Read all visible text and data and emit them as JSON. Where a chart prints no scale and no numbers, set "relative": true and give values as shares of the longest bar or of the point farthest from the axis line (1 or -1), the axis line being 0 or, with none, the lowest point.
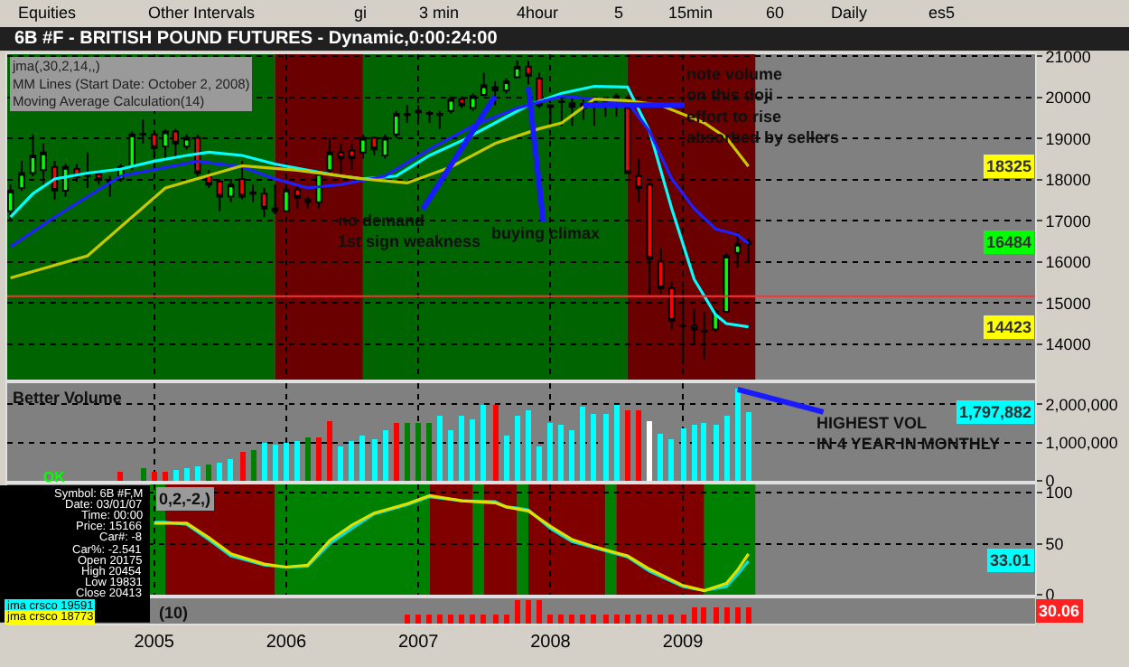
{
  "chart_data": [
    {
      "type": "candlestick",
      "title": "6B #F - BRITISH POUND FUTURES - Dynamic,0:00:24:00",
      "subtitle": "jma(,30,2,14,,)\nMM Lines (Start Date: October 2, 2008)\nMoving Average Calculation(14)",
      "x": [
        "2003-12",
        "2004-01",
        "2004-02",
        "2004-03",
        "2004-04",
        "2004-05",
        "2004-06",
        "2004-07",
        "2004-08",
        "2004-09",
        "2004-10",
        "2004-11",
        "2004-12",
        "2005-01",
        "2005-02",
        "2005-03",
        "2005-04",
        "2005-05",
        "2005-06",
        "2005-07",
        "2005-08",
        "2005-09",
        "2005-10",
        "2005-11",
        "2005-12",
        "2006-01",
        "2006-02",
        "2006-03",
        "2006-04",
        "2006-05",
        "2006-06",
        "2006-07",
        "2006-08",
        "2006-09",
        "2006-10",
        "2006-11",
        "2006-12",
        "2007-01",
        "2007-02",
        "2007-03",
        "2007-04",
        "2007-05",
        "2007-06",
        "2007-07",
        "2007-08",
        "2007-09",
        "2007-10",
        "2007-11",
        "2007-12",
        "2008-01",
        "2008-02",
        "2008-03",
        "2008-04",
        "2008-05",
        "2008-06",
        "2008-07",
        "2008-08",
        "2008-09",
        "2008-10",
        "2008-11",
        "2008-12",
        "2009-01",
        "2009-02",
        "2009-03",
        "2009-04",
        "2009-05",
        "2009-06",
        "2009-07"
      ],
      "ohlc": [
        [
          17230,
          17880,
          17010,
          17730
        ],
        [
          17800,
          18450,
          17730,
          18160
        ],
        [
          18160,
          19100,
          18090,
          18590
        ],
        [
          18230,
          18880,
          17800,
          18660
        ],
        [
          18310,
          18450,
          17520,
          17730
        ],
        [
          17730,
          18380,
          17590,
          18310
        ],
        [
          18260,
          18380,
          17950,
          18060
        ],
        [
          18090,
          18660,
          17800,
          18120
        ],
        [
          18130,
          18230,
          17880,
          17990
        ],
        [
          17950,
          18090,
          17590,
          17980
        ],
        [
          18020,
          18380,
          17950,
          18310
        ],
        [
          18310,
          19170,
          18230,
          19100
        ],
        [
          19100,
          19460,
          18880,
          19110
        ],
        [
          19100,
          19200,
          18520,
          18770
        ],
        [
          18810,
          19240,
          18450,
          19170
        ],
        [
          19170,
          19240,
          18520,
          18880
        ],
        [
          18810,
          19100,
          18740,
          19020
        ],
        [
          19020,
          19100,
          18090,
          18160
        ],
        [
          18090,
          18230,
          17800,
          17880
        ],
        [
          17950,
          18020,
          17230,
          17590
        ],
        [
          17590,
          18020,
          17450,
          17880
        ],
        [
          18020,
          18450,
          17520,
          17590
        ],
        [
          17660,
          17880,
          17450,
          17690
        ],
        [
          17660,
          17800,
          17090,
          17300
        ],
        [
          17300,
          17880,
          17160,
          17230
        ],
        [
          17230,
          17880,
          17230,
          17760
        ],
        [
          17760,
          17880,
          17300,
          17560
        ],
        [
          17520,
          17590,
          17300,
          17450
        ],
        [
          17450,
          18230,
          17300,
          18160
        ],
        [
          18230,
          19020,
          18160,
          18660
        ],
        [
          18660,
          18880,
          18160,
          18520
        ],
        [
          18710,
          18880,
          18230,
          18520
        ],
        [
          18660,
          19100,
          18520,
          19020
        ],
        [
          19020,
          19050,
          18590,
          18740
        ],
        [
          18590,
          19100,
          18520,
          19020
        ],
        [
          19100,
          19670,
          19020,
          19600
        ],
        [
          19600,
          19810,
          19380,
          19570
        ],
        [
          19670,
          19810,
          19460,
          19640
        ],
        [
          19600,
          19670,
          19380,
          19620
        ],
        [
          19600,
          19670,
          19240,
          19570
        ],
        [
          19670,
          20030,
          19600,
          19960
        ],
        [
          19960,
          20030,
          19740,
          19810
        ],
        [
          19740,
          20100,
          19670,
          20030
        ],
        [
          20060,
          20600,
          20030,
          20290
        ],
        [
          20250,
          20390,
          19810,
          20170
        ],
        [
          20170,
          20460,
          20100,
          20390
        ],
        [
          20490,
          20890,
          20460,
          20750
        ],
        [
          20750,
          20890,
          20320,
          20530
        ],
        [
          20460,
          20600,
          19740,
          19810
        ],
        [
          19810,
          19810,
          19310,
          19770
        ],
        [
          19890,
          20030,
          19310,
          19900
        ],
        [
          19860,
          20030,
          19310,
          19770
        ],
        [
          19740,
          19960,
          19460,
          19840
        ],
        [
          19890,
          19890,
          19310,
          19860
        ],
        [
          19960,
          19960,
          19530,
          19900
        ],
        [
          20030,
          20100,
          19530,
          19960
        ],
        [
          19740,
          20030,
          18160,
          18160
        ],
        [
          18090,
          18520,
          17450,
          17800
        ],
        [
          17880,
          17950,
          15220,
          16080
        ],
        [
          16010,
          16330,
          15220,
          15360
        ],
        [
          15360,
          15510,
          14360,
          14570
        ],
        [
          14460,
          15360,
          13500,
          14440
        ],
        [
          14460,
          14860,
          14000,
          14360
        ],
        [
          14310,
          14790,
          13640,
          14320
        ],
        [
          14360,
          14860,
          14290,
          14790
        ],
        [
          14790,
          16220,
          14790,
          16150
        ],
        [
          16220,
          16730,
          15870,
          16440
        ],
        [
          16440,
          16580,
          16010,
          16484
        ]
      ],
      "series": [
        {
          "type": "line",
          "color": "#00ffff",
          "x": [
            "2003-12",
            "2004-02",
            "2004-04",
            "2004-07",
            "2004-10",
            "2005-01",
            "2005-04",
            "2005-06",
            "2005-09",
            "2005-12",
            "2006-03",
            "2006-06",
            "2006-08",
            "2006-11",
            "2007-02",
            "2007-05",
            "2007-08",
            "2007-11",
            "2008-02",
            "2008-05",
            "2008-08",
            "2008-10",
            "2008-12",
            "2009-02",
            "2009-04",
            "2009-05",
            "2009-07"
          ],
          "values": [
            17090,
            17660,
            18020,
            18160,
            18260,
            18450,
            18590,
            18670,
            18590,
            18380,
            18230,
            18090,
            18020,
            18090,
            18590,
            18950,
            19380,
            19810,
            20100,
            20270,
            20250,
            19170,
            17300,
            15580,
            14720,
            14500,
            14423
          ]
        },
        {
          "type": "line",
          "color": "#2020ff",
          "x": [
            "2003-12",
            "2004-04",
            "2004-10",
            "2005-05",
            "2005-09",
            "2005-12",
            "2006-03",
            "2006-06",
            "2006-10",
            "2007-02",
            "2007-06",
            "2007-10",
            "2008-02",
            "2008-08",
            "2008-10",
            "2008-12",
            "2009-02",
            "2009-04",
            "2009-06",
            "2009-07"
          ],
          "values": [
            16370,
            17090,
            18090,
            18450,
            18310,
            18020,
            17800,
            17880,
            18090,
            18740,
            19310,
            19740,
            20030,
            19890,
            19170,
            18020,
            17300,
            16800,
            16660,
            16440
          ]
        },
        {
          "type": "line",
          "color": "#c8c800",
          "x": [
            "2003-12",
            "2004-07",
            "2005-02",
            "2005-09",
            "2006-02",
            "2006-08",
            "2006-12",
            "2007-04",
            "2007-08",
            "2007-12",
            "2008-02",
            "2008-05",
            "2008-08",
            "2008-11",
            "2009-03",
            "2009-05",
            "2009-07"
          ],
          "values": [
            15610,
            16150,
            17800,
            18340,
            18230,
            18020,
            17920,
            18310,
            18880,
            19240,
            19380,
            19960,
            19920,
            19810,
            19380,
            19020,
            18325
          ]
        }
      ],
      "xlim": [
        "2003-11-22",
        "2011-09-01"
      ],
      "xticks": [
        "2005",
        "2006",
        "2007",
        "2008",
        "2009"
      ],
      "ylim": [
        13140,
        21050
      ],
      "yticks": [
        14000,
        15000,
        16000,
        17000,
        18000,
        19000,
        20000,
        21000
      ],
      "tick_labels": "y",
      "grid": true,
      "bands": [
        {
          "axis": "x",
          "from": "2003-11-22",
          "to": "2005-12",
          "color": "#006400"
        },
        {
          "axis": "x",
          "from": "2005-12",
          "to": "2006-08",
          "color": "#6b0000"
        },
        {
          "axis": "x",
          "from": "2006-08",
          "to": "2008-08",
          "color": "#006400"
        },
        {
          "axis": "x",
          "from": "2008-08",
          "to": "2009-07-20",
          "color": "#6b0000"
        }
      ],
      "ref_lines": [
        {
          "axis": "y",
          "value": 15166,
          "color": "#ff3030"
        }
      ],
      "annotations": [
        {
          "text": "no demand\n1st sign weakness",
          "x": "2007-08",
          "y": 20030
        },
        {
          "text": "buying climax",
          "x": "2007-11",
          "y": 20250
        },
        {
          "text": "note volume\non this doji\neffort to rise\nabsorbed by sellers",
          "x": "2008-04",
          "y": 19815
        },
        {
          "text": "18325",
          "y": 18325
        },
        {
          "text": "16484",
          "y": 16484
        },
        {
          "text": "14423",
          "y": 14423
        },
        "Equities",
        "Other Intervals",
        "gi",
        "3 min",
        "4hour",
        "5",
        "15min",
        "60",
        "Daily",
        "es5"
      ]
    },
    {
      "type": "bar",
      "title": "Better Volume",
      "x": [
        "2004-10",
        "2004-11",
        "2004-12",
        "2005-01",
        "2005-02",
        "2005-03",
        "2005-04",
        "2005-05",
        "2005-06",
        "2005-07",
        "2005-08",
        "2005-09",
        "2005-10",
        "2005-11",
        "2005-12",
        "2006-01",
        "2006-02",
        "2006-03",
        "2006-04",
        "2006-05",
        "2006-06",
        "2006-07",
        "2006-08",
        "2006-09",
        "2006-10",
        "2006-11",
        "2006-12",
        "2007-01",
        "2007-02",
        "2007-03",
        "2007-04",
        "2007-05",
        "2007-06",
        "2007-07",
        "2007-08",
        "2007-09",
        "2007-10",
        "2007-11",
        "2007-12",
        "2008-01",
        "2008-02",
        "2008-03",
        "2008-04",
        "2008-05",
        "2008-06",
        "2008-07",
        "2008-08",
        "2008-09",
        "2008-10",
        "2008-11",
        "2008-12",
        "2009-01",
        "2009-02",
        "2009-03",
        "2009-04",
        "2009-05",
        "2009-06",
        "2009-07"
      ],
      "values": [
        230000,
        null,
        330000,
        250000,
        250000,
        290000,
        330000,
        390000,
        430000,
        490000,
        590000,
        740000,
        820000,
        980000,
        940000,
        980000,
        1020000,
        1120000,
        1140000,
        1570000,
        920000,
        1020000,
        1170000,
        1080000,
        1330000,
        1530000,
        1530000,
        1530000,
        1530000,
        1720000,
        1330000,
        1700000,
        1600000,
        1960000,
        2000000,
        1170000,
        1720000,
        1860000,
        880000,
        1490000,
        1450000,
        1310000,
        1920000,
        1760000,
        1760000,
        1960000,
        1860000,
        1860000,
        1570000,
        1210000,
        1080000,
        1370000,
        1450000,
        1530000,
        1450000,
        1700000,
        2390000,
        1797882
      ],
      "colors": [
        "#ff0000",
        "#00ffff",
        "#008000",
        "#ff0000",
        "#ff0000",
        "#00ffff",
        "#00ffff",
        "#00ffff",
        "#008000",
        "#00ffff",
        "#00ffff",
        "#ff0000",
        "#008000",
        "#00ffff",
        "#00ffff",
        "#00ffff",
        "#00ffff",
        "#008000",
        "#ff0000",
        "#ff0000",
        "#00ffff",
        "#00ffff",
        "#00ffff",
        "#00ffff",
        "#00ffff",
        "#ff0000",
        "#008000",
        "#008000",
        "#008000",
        "#00ffff",
        "#00ffff",
        "#00ffff",
        "#00ffff",
        "#00ffff",
        "#ff0000",
        "#00ffff",
        "#00ffff",
        "#00ffff",
        "#00ffff",
        "#00ffff",
        "#00ffff",
        "#00ffff",
        "#00ffff",
        "#00ffff",
        "#00ffff",
        "#00ffff",
        "#ff0000",
        "#ff0000",
        "#ffffff",
        "#00ffff",
        "#00ffff",
        "#00ffff",
        "#00ffff",
        "#00ffff",
        "#00ffff",
        "#00ffff",
        "#00ffff",
        "#00ffff"
      ],
      "xlim": [
        "2003-11-22",
        "2011-09-01"
      ],
      "xticks": [
        "2005",
        "2006",
        "2007",
        "2008",
        "2009"
      ],
      "ylim": [
        0,
        2550000
      ],
      "yticks": [
        0,
        {
          "value": 1000000,
          "label": "1,000,000"
        },
        {
          "value": 2000000,
          "label": "2,000,000"
        }
      ],
      "tick_labels": "y",
      "grid": true,
      "annotations": [
        {
          "text": "HIGHEST VOL\nIN 4 YEAR IN MONTHLY",
          "x": "2009-06",
          "y": 2390000
        },
        {
          "text": "1,797,882",
          "y": 1797882
        },
        "OK"
      ]
    },
    {
      "type": "line",
      "title": "0,2,-2,)",
      "series": [
        {
          "type": "line",
          "color": "#00e0e0",
          "x": [
            "2005-01",
            "2005-02",
            "2005-04",
            "2005-06",
            "2005-08",
            "2005-11",
            "2006-01",
            "2006-03",
            "2006-05",
            "2006-07",
            "2006-09",
            "2006-12",
            "2007-02",
            "2007-05",
            "2007-08",
            "2007-09",
            "2007-10",
            "2007-11",
            "2008-01",
            "2008-03",
            "2008-05",
            "2008-07",
            "2008-08",
            "2008-10",
            "2009-01",
            "2009-03",
            "2009-05",
            "2009-06",
            "2009-07"
          ],
          "values": [
            71,
            71,
            69,
            54,
            38,
            29,
            27,
            28,
            50,
            65,
            79,
            88,
            96,
            92,
            91,
            86,
            85,
            83,
            65,
            52,
            46,
            40,
            37,
            23,
            8,
            4,
            8,
            20,
            33.01
          ]
        },
        {
          "type": "line",
          "color": "#e0e000",
          "x": [
            "2005-01",
            "2005-02",
            "2005-04",
            "2005-06",
            "2005-08",
            "2005-11",
            "2006-01",
            "2006-03",
            "2006-05",
            "2006-07",
            "2006-09",
            "2006-12",
            "2007-02",
            "2007-05",
            "2007-08",
            "2007-09",
            "2007-10",
            "2007-11",
            "2008-01",
            "2008-03",
            "2008-05",
            "2008-07",
            "2008-08",
            "2008-10",
            "2009-01",
            "2009-03",
            "2009-05",
            "2009-06",
            "2009-07"
          ],
          "values": [
            70,
            70,
            70,
            56,
            40,
            30,
            27,
            29,
            53,
            68,
            80,
            89,
            97,
            92,
            90,
            86,
            84,
            82,
            67,
            54,
            47,
            41,
            38,
            25,
            9,
            4,
            11,
            24,
            40
          ]
        }
      ],
      "xlim": [
        "2003-11-22",
        "2011-09-01"
      ],
      "xticks": [
        "2005",
        "2006",
        "2007",
        "2008",
        "2009"
      ],
      "ylim": [
        0,
        108
      ],
      "yticks": [
        0,
        50,
        100
      ],
      "tick_labels": "y",
      "grid": true,
      "bands": [
        {
          "axis": "x",
          "from": "2004-12-20",
          "to": "2005-02",
          "color": "#008000"
        },
        {
          "axis": "x",
          "from": "2005-02",
          "to": "2005-12",
          "color": "#800000"
        },
        {
          "axis": "x",
          "from": "2005-12",
          "to": "2007-02",
          "color": "#008000"
        },
        {
          "axis": "x",
          "from": "2007-02",
          "to": "2007-06",
          "color": "#800000"
        },
        {
          "axis": "x",
          "from": "2007-06",
          "to": "2007-07",
          "color": "#008000"
        },
        {
          "axis": "x",
          "from": "2007-07",
          "to": "2007-10",
          "color": "#800000"
        },
        {
          "axis": "x",
          "from": "2007-10",
          "to": "2007-11",
          "color": "#008000"
        },
        {
          "axis": "x",
          "from": "2007-11",
          "to": "2008-06",
          "color": "#800000"
        },
        {
          "axis": "x",
          "from": "2008-06",
          "to": "2008-07",
          "color": "#008000"
        },
        {
          "axis": "x",
          "from": "2008-07",
          "to": "2009-03",
          "color": "#800000"
        },
        {
          "axis": "x",
          "from": "2009-03",
          "to": "2009-07-20",
          "color": "#008000"
        }
      ],
      "annotations": [
        {
          "text": "33.01",
          "y": 33.01
        },
        "Symbol: 6B #F,M",
        "Date: 03/01/07",
        "Time: 00:00",
        "Price: 15166",
        "Car#: -8",
        "Car%: -2.541",
        "Open 20175",
        "High 20454",
        "Low 19831",
        "Close 20413",
        "jma crsco 19591",
        "jma crsco 18773"
      ]
    },
    {
      "type": "bar",
      "relative": true,
      "title": "(10)",
      "color": "#ff0000",
      "x": [
        "2006-12",
        "2007-01",
        "2007-02",
        "2007-03",
        "2007-04",
        "2007-05",
        "2007-06",
        "2007-07",
        "2007-08",
        "2007-09",
        "2007-10",
        "2007-11",
        "2007-12",
        "2008-01",
        "2008-02",
        "2008-03",
        "2008-04",
        "2008-05",
        "2008-06",
        "2008-07",
        "2008-08",
        "2008-09",
        "2008-10",
        "2008-11",
        "2008-12",
        "2009-01",
        "2009-02",
        "2009-03",
        "2009-04",
        "2009-05",
        "2009-06",
        "2009-07"
      ],
      "values": [
        0.4,
        0.4,
        0.4,
        0.4,
        0.4,
        0.4,
        0.4,
        0.4,
        0.4,
        0.4,
        1,
        1,
        1,
        0.4,
        0.4,
        0.4,
        0.4,
        0.4,
        0.4,
        0.4,
        0.4,
        0.4,
        0.4,
        0.4,
        0.4,
        0.4,
        0.7,
        0.7,
        0.7,
        0.7,
        0.7,
        0.7
      ],
      "xlim": [
        "2003-11-22",
        "2011-09-01"
      ],
      "xticks": [
        "2005",
        "2006",
        "2007",
        "2008",
        "2009"
      ],
      "tick_labels": "x",
      "annotations": [
        "30.06"
      ]
    }
  ]
}
